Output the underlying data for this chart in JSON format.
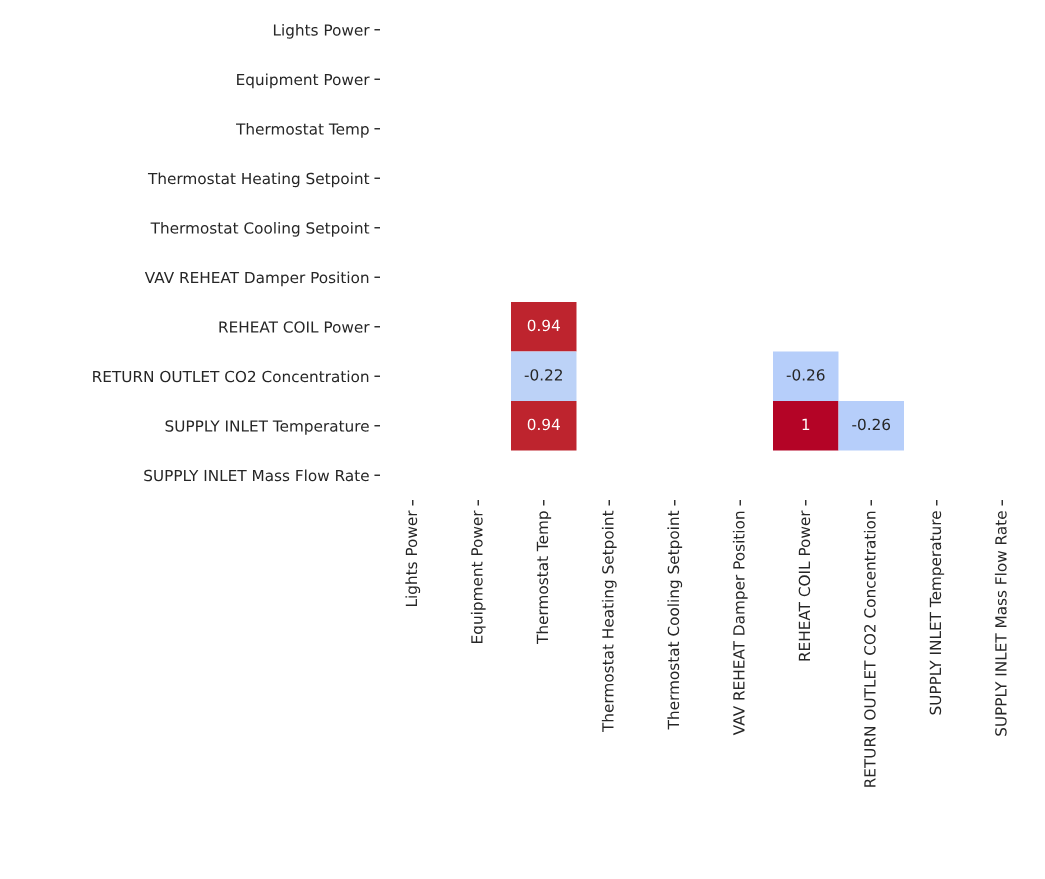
{
  "chart_data": {
    "type": "heatmap",
    "categories": [
      "Lights Power",
      "Equipment Power",
      "Thermostat Temp",
      "Thermostat Heating Setpoint",
      "Thermostat Cooling Setpoint",
      "VAV REHEAT Damper Position",
      "REHEAT COIL Power",
      "RETURN OUTLET CO2 Concentration",
      "SUPPLY INLET Temperature",
      "SUPPLY INLET Mass Flow Rate"
    ],
    "y_categories": [
      "Lights Power",
      "Equipment Power",
      "Thermostat Temp",
      "Thermostat Heating Setpoint",
      "Thermostat Cooling Setpoint",
      "VAV REHEAT Damper Position",
      "REHEAT COIL Power",
      "RETURN OUTLET CO2 Concentration",
      "SUPPLY INLET Temperature",
      "SUPPLY INLET Mass Flow Rate"
    ],
    "cells": [
      [
        null,
        null,
        null,
        null,
        null,
        null,
        null,
        null,
        null,
        null
      ],
      [
        null,
        null,
        null,
        null,
        null,
        null,
        null,
        null,
        null,
        null
      ],
      [
        null,
        null,
        null,
        null,
        null,
        null,
        null,
        null,
        null,
        null
      ],
      [
        null,
        null,
        null,
        null,
        null,
        null,
        null,
        null,
        null,
        null
      ],
      [
        null,
        null,
        null,
        null,
        null,
        null,
        null,
        null,
        null,
        null
      ],
      [
        null,
        null,
        null,
        null,
        null,
        null,
        null,
        null,
        null,
        null
      ],
      [
        null,
        null,
        0.94,
        null,
        null,
        null,
        null,
        null,
        null,
        null
      ],
      [
        null,
        null,
        -0.22,
        null,
        null,
        null,
        -0.26,
        null,
        null,
        null
      ],
      [
        null,
        null,
        0.94,
        null,
        null,
        null,
        1,
        -0.26,
        null,
        null
      ],
      [
        null,
        null,
        null,
        null,
        null,
        null,
        null,
        null,
        null,
        null
      ]
    ],
    "data_labels": true
  }
}
